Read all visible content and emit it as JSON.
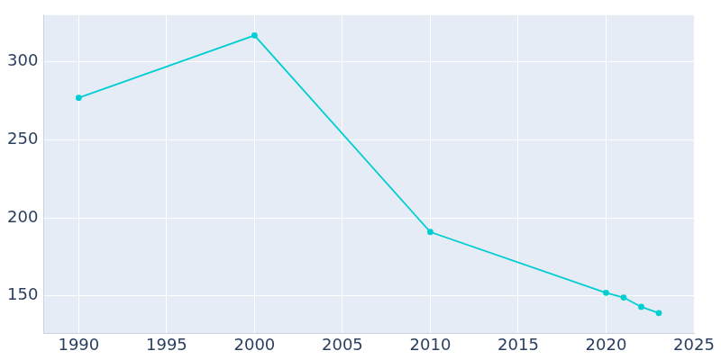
{
  "chart_data": {
    "type": "line",
    "x": [
      1990,
      2000,
      2010,
      2020,
      2021,
      2022,
      2023
    ],
    "values": [
      277,
      317,
      191,
      152,
      149,
      143,
      139
    ],
    "color": "#00ced1",
    "xlim": [
      1988,
      2025
    ],
    "xticks": [
      1990,
      1995,
      2000,
      2005,
      2010,
      2015,
      2020,
      2025
    ],
    "ylim": [
      126,
      330
    ],
    "yticks": [
      150,
      200,
      250,
      300
    ],
    "grid": true,
    "marker": "circle"
  }
}
